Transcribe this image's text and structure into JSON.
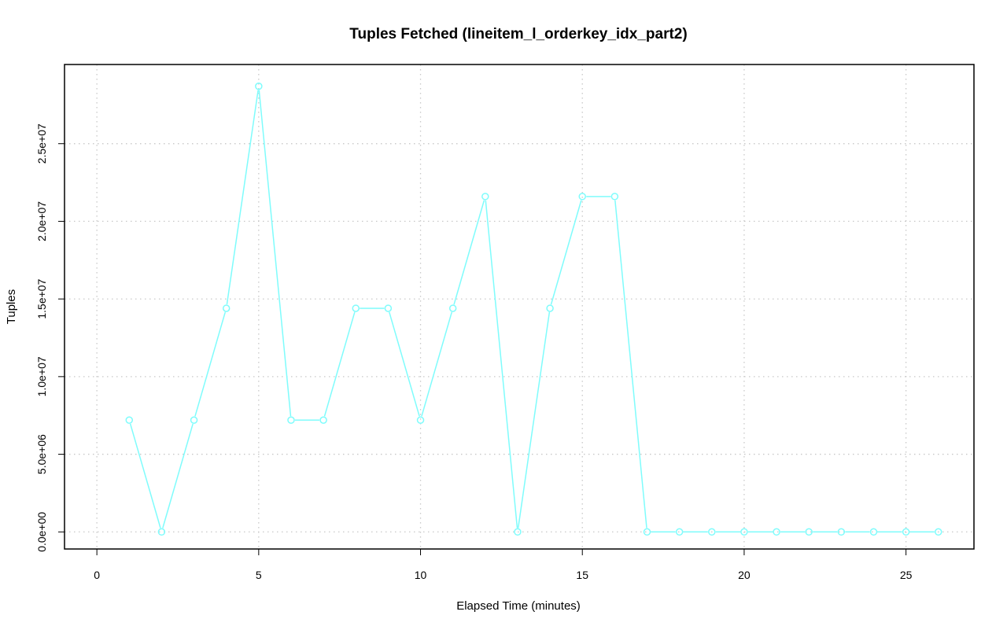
{
  "chart_data": {
    "type": "line",
    "title": "Tuples Fetched (lineitem_l_orderkey_idx_part2)",
    "xlabel": "Elapsed Time (minutes)",
    "ylabel": "Tuples",
    "xlim": [
      -1,
      27.1
    ],
    "ylim": [
      -1100000,
      30100000
    ],
    "x_ticks": [
      0,
      5,
      10,
      15,
      20,
      25
    ],
    "x_tick_labels": [
      "0",
      "5",
      "10",
      "15",
      "20",
      "25"
    ],
    "y_ticks": [
      0,
      5000000,
      10000000,
      15000000,
      20000000,
      25000000
    ],
    "y_tick_labels": [
      "0.0e+00",
      "5.0e+06",
      "1.0e+07",
      "1.5e+07",
      "2.0e+07",
      "2.5e+07"
    ],
    "grid": true,
    "series_color": "#7ffcfc",
    "grid_color": "#c8c8c8",
    "series": [
      {
        "x": [
          1,
          2,
          3,
          4,
          5,
          6,
          7,
          8,
          9,
          10,
          11,
          12,
          13,
          14,
          15,
          16,
          17,
          18,
          19,
          20,
          21,
          22,
          23,
          24,
          25,
          26
        ],
        "values": [
          7200000,
          0,
          7200000,
          14400000,
          28700000,
          7200000,
          7200000,
          14400000,
          14400000,
          7200000,
          14400000,
          21600000,
          0,
          14400000,
          21600000,
          21600000,
          0,
          0,
          0,
          0,
          0,
          0,
          0,
          0,
          0,
          0
        ]
      }
    ]
  }
}
